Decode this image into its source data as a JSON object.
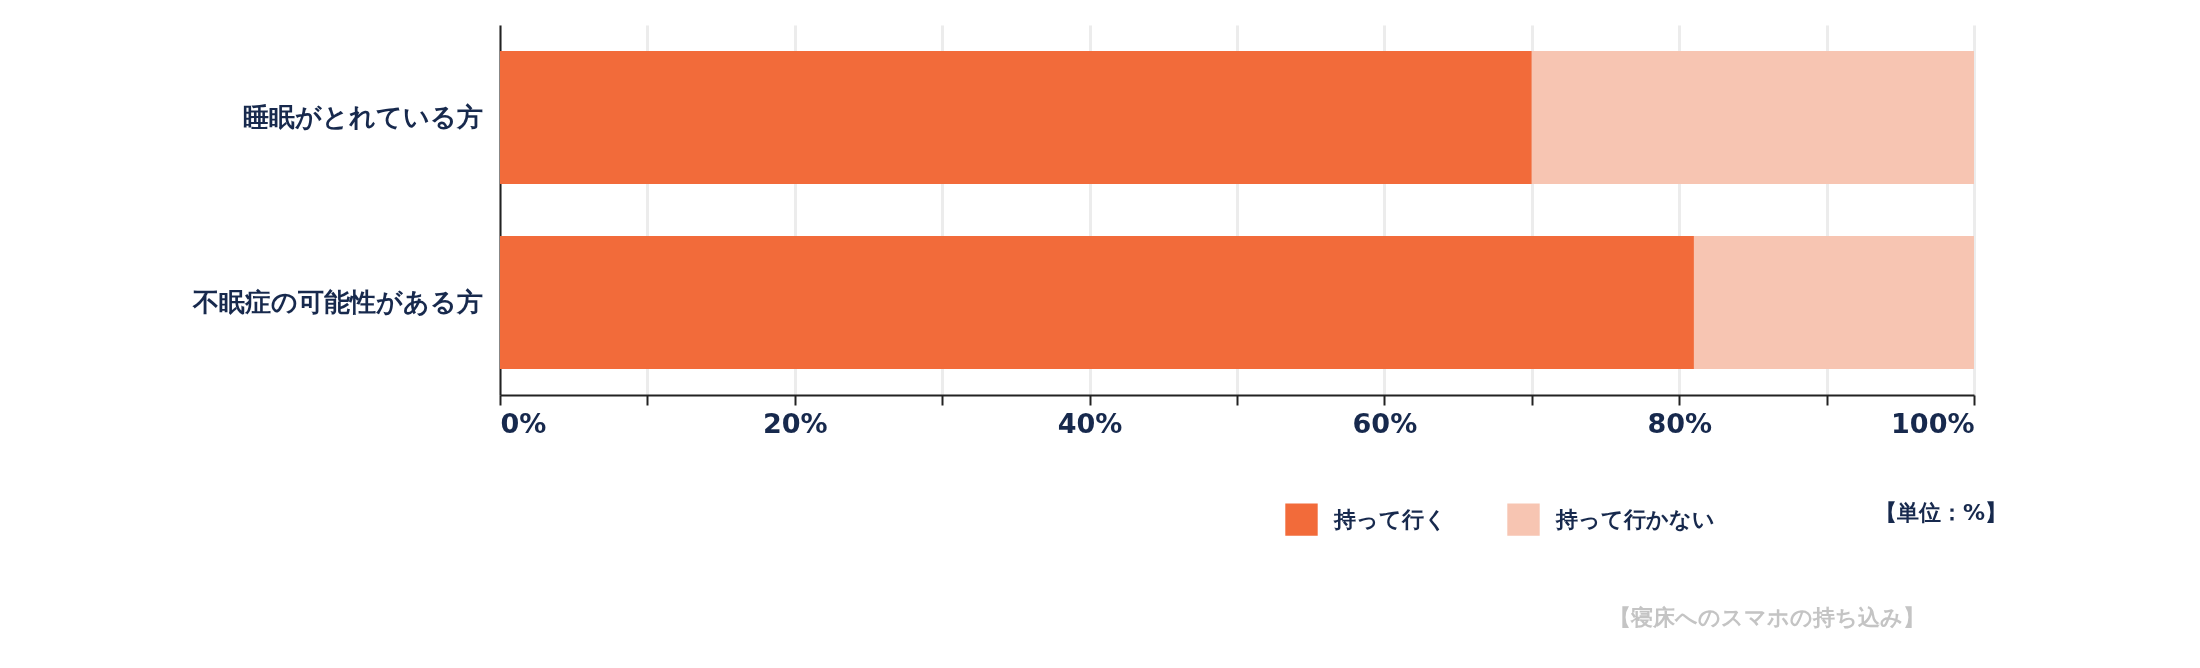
{
  "chart_data": {
    "type": "bar",
    "orientation": "horizontal",
    "stacked": true,
    "categories": [
      "睡眠がとれている方",
      "不眠症の可能性がある方"
    ],
    "series": [
      {
        "name": "持って行く",
        "color": "#f26b3a",
        "values": [
          70,
          81
        ]
      },
      {
        "name": "持って行かない",
        "color": "#f7c5b2",
        "values": [
          30,
          19
        ]
      }
    ],
    "xlim": [
      0,
      100
    ],
    "xticks": [
      {
        "value": 0,
        "label": "0%"
      },
      {
        "value": 10,
        "label": null
      },
      {
        "value": 20,
        "label": "20%"
      },
      {
        "value": 30,
        "label": null
      },
      {
        "value": 40,
        "label": "40%"
      },
      {
        "value": 50,
        "label": null
      },
      {
        "value": 60,
        "label": "60%"
      },
      {
        "value": 70,
        "label": null
      },
      {
        "value": 80,
        "label": "80%"
      },
      {
        "value": 90,
        "label": null
      },
      {
        "value": 100,
        "label": "100%"
      }
    ],
    "grid": "x",
    "legend": "bottom",
    "annotations": [
      "【単位：%】",
      "【寝床へのスマホの持ち込み】"
    ]
  }
}
